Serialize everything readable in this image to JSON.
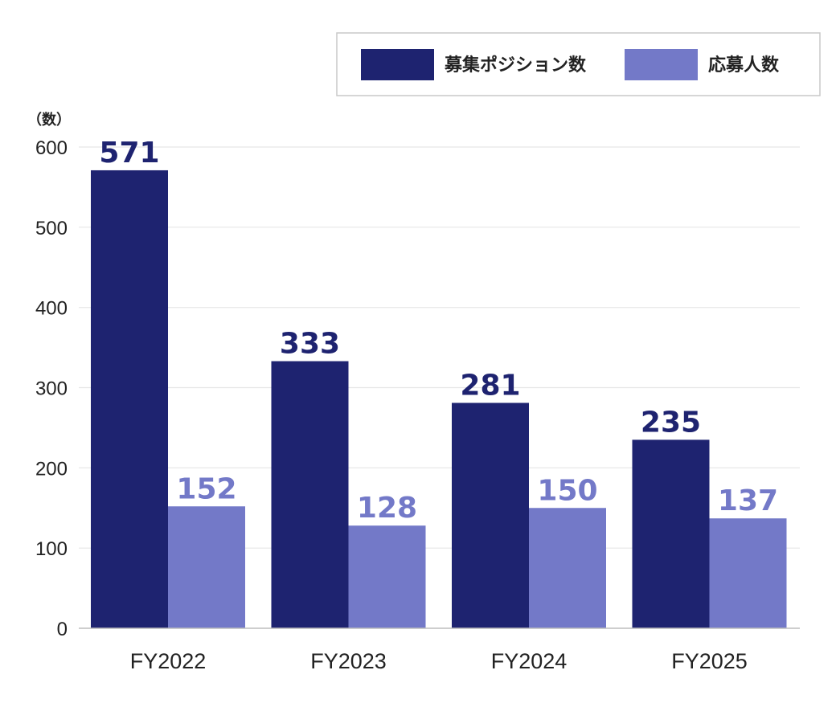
{
  "chart_data": {
    "type": "bar",
    "unit_label": "（数）",
    "categories": [
      "FY2022",
      "FY2023",
      "FY2024",
      "FY2025"
    ],
    "series": [
      {
        "name": "募集ポジション数",
        "color": "#1e2370",
        "values": [
          571,
          333,
          281,
          235
        ]
      },
      {
        "name": "応募人数",
        "color": "#7379c8",
        "values": [
          152,
          128,
          150,
          137
        ]
      }
    ],
    "ylim": [
      0,
      600
    ],
    "yticks": [
      0,
      100,
      200,
      300,
      400,
      500,
      600
    ],
    "grid": true,
    "data_labels": true,
    "legend_position": "top-right"
  }
}
